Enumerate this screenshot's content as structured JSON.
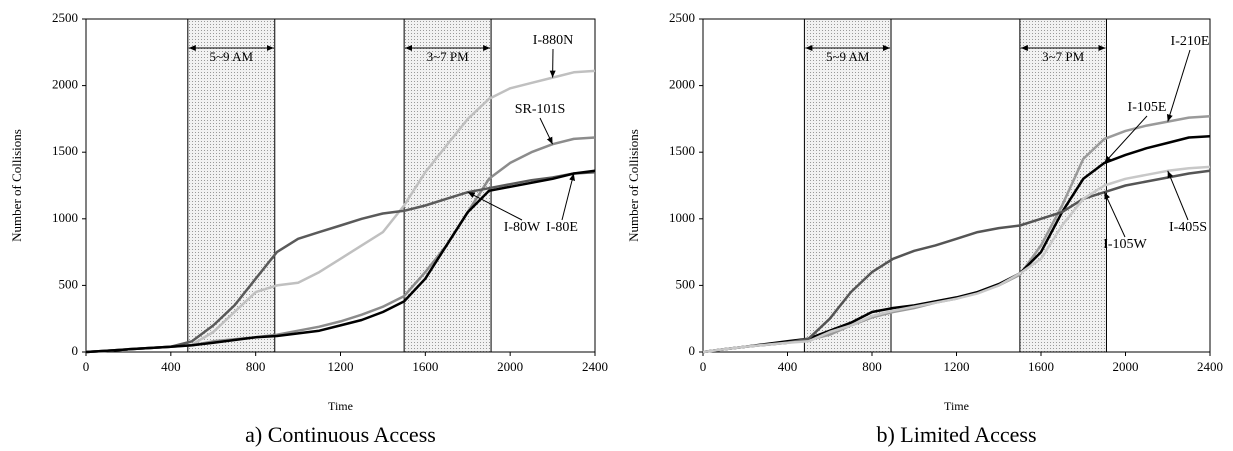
{
  "chart_data": [
    {
      "type": "line",
      "caption": "a) Continuous Access",
      "xlabel": "Time",
      "ylabel": "Number of Collisions",
      "x": [
        0,
        100,
        200,
        300,
        400,
        500,
        600,
        700,
        800,
        900,
        1000,
        1100,
        1200,
        1300,
        1400,
        1500,
        1600,
        1700,
        1800,
        1900,
        2000,
        2100,
        2200,
        2300,
        2400
      ],
      "xlim": [
        0,
        2400
      ],
      "xticks": [
        0,
        400,
        800,
        1200,
        1600,
        2000,
        2400
      ],
      "ylim": [
        0,
        2500
      ],
      "yticks": [
        0,
        500,
        1000,
        1500,
        2000,
        2500
      ],
      "shaded_regions": [
        {
          "label": "5~9 AM",
          "range": [
            480,
            890
          ]
        },
        {
          "label": "3~7 PM",
          "range": [
            1500,
            1910
          ]
        }
      ],
      "series": [
        {
          "name": "I-880N",
          "color": "#c0c0c0",
          "values": [
            0,
            10,
            20,
            30,
            40,
            55,
            150,
            300,
            450,
            500,
            520,
            600,
            700,
            800,
            900,
            1100,
            1350,
            1550,
            1750,
            1900,
            1980,
            2020,
            2060,
            2100,
            2110
          ]
        },
        {
          "name": "SR-101S",
          "color": "#8c8c8c",
          "values": [
            0,
            10,
            20,
            30,
            40,
            50,
            80,
            95,
            110,
            130,
            160,
            190,
            230,
            280,
            340,
            420,
            600,
            800,
            1050,
            1300,
            1420,
            1500,
            1560,
            1600,
            1610
          ]
        },
        {
          "name": "I-80W",
          "color": "#5a5a5a",
          "values": [
            0,
            10,
            20,
            30,
            40,
            80,
            200,
            350,
            550,
            750,
            850,
            900,
            950,
            1000,
            1040,
            1060,
            1100,
            1150,
            1200,
            1230,
            1260,
            1290,
            1310,
            1340,
            1350
          ]
        },
        {
          "name": "I-80E",
          "color": "#000000",
          "values": [
            0,
            10,
            20,
            30,
            40,
            50,
            70,
            90,
            110,
            120,
            140,
            160,
            200,
            240,
            300,
            380,
            550,
            800,
            1050,
            1210,
            1240,
            1270,
            1300,
            1340,
            1360
          ]
        }
      ]
    },
    {
      "type": "line",
      "caption": "b) Limited Access",
      "xlabel": "Time",
      "ylabel": "Number of Collisions",
      "x": [
        0,
        100,
        200,
        300,
        400,
        500,
        600,
        700,
        800,
        900,
        1000,
        1100,
        1200,
        1300,
        1400,
        1500,
        1600,
        1700,
        1800,
        1900,
        2000,
        2100,
        2200,
        2300,
        2400
      ],
      "xlim": [
        0,
        2400
      ],
      "xticks": [
        0,
        400,
        800,
        1200,
        1600,
        2000,
        2400
      ],
      "ylim": [
        0,
        2500
      ],
      "yticks": [
        0,
        500,
        1000,
        1500,
        2000,
        2500
      ],
      "shaded_regions": [
        {
          "label": "5~9 AM",
          "range": [
            480,
            890
          ]
        },
        {
          "label": "3~7 PM",
          "range": [
            1500,
            1910
          ]
        }
      ],
      "series": [
        {
          "name": "I-210E",
          "color": "#9a9a9a",
          "values": [
            0,
            20,
            40,
            55,
            70,
            90,
            130,
            200,
            260,
            300,
            330,
            370,
            400,
            450,
            500,
            580,
            800,
            1100,
            1450,
            1600,
            1660,
            1700,
            1730,
            1760,
            1770
          ]
        },
        {
          "name": "I-105E",
          "color": "#000000",
          "values": [
            0,
            20,
            40,
            60,
            80,
            100,
            160,
            220,
            300,
            330,
            350,
            380,
            410,
            450,
            510,
            590,
            750,
            1050,
            1300,
            1420,
            1480,
            1530,
            1570,
            1610,
            1620
          ]
        },
        {
          "name": "I-105W",
          "color": "#555555",
          "values": [
            0,
            20,
            40,
            55,
            70,
            100,
            250,
            450,
            600,
            700,
            760,
            800,
            850,
            900,
            930,
            950,
            1000,
            1050,
            1150,
            1200,
            1250,
            1280,
            1310,
            1340,
            1360
          ]
        },
        {
          "name": "I-405S",
          "color": "#c8c8c8",
          "values": [
            0,
            20,
            40,
            55,
            70,
            80,
            150,
            200,
            270,
            310,
            340,
            370,
            400,
            440,
            500,
            590,
            700,
            950,
            1150,
            1250,
            1300,
            1330,
            1360,
            1380,
            1390
          ]
        }
      ]
    }
  ]
}
